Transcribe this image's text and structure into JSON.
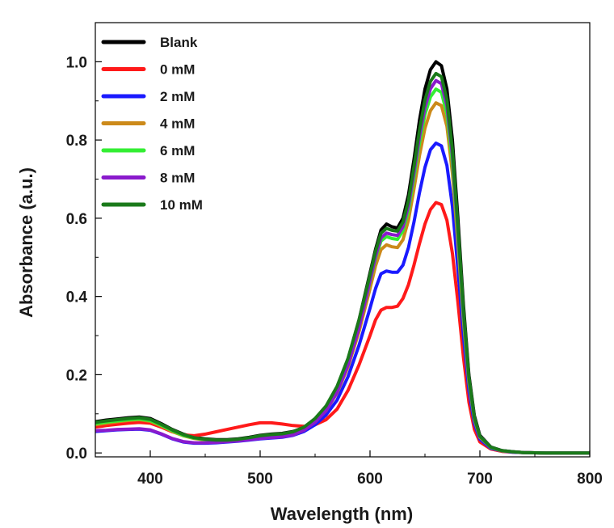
{
  "chart_data": {
    "type": "line",
    "xlabel": "Wavelength (nm)",
    "ylabel": "Absorbance (a.u.)",
    "xlim": [
      350,
      800
    ],
    "ylim": [
      -0.01,
      1.1
    ],
    "x_ticks": [
      400,
      500,
      600,
      700,
      800
    ],
    "x_tick_labels": [
      "400",
      "500",
      "600",
      "700",
      "800"
    ],
    "y_ticks": [
      0.0,
      0.2,
      0.4,
      0.6,
      0.8,
      1.0
    ],
    "y_tick_labels": [
      "0.0",
      "0.2",
      "0.4",
      "0.6",
      "0.8",
      "1.0"
    ],
    "grid": false,
    "legend_position": "top-left",
    "x": [
      350,
      360,
      370,
      380,
      390,
      400,
      410,
      420,
      430,
      440,
      450,
      460,
      470,
      480,
      490,
      500,
      510,
      520,
      530,
      540,
      550,
      560,
      570,
      580,
      590,
      600,
      605,
      610,
      615,
      620,
      625,
      630,
      635,
      640,
      645,
      650,
      655,
      660,
      665,
      670,
      675,
      680,
      685,
      690,
      695,
      700,
      710,
      720,
      730,
      740,
      760,
      780,
      800
    ],
    "series": [
      {
        "name": "Blank",
        "color": "#000000",
        "values": [
          0.08,
          0.084,
          0.087,
          0.09,
          0.092,
          0.088,
          0.075,
          0.06,
          0.048,
          0.04,
          0.036,
          0.034,
          0.034,
          0.036,
          0.04,
          0.045,
          0.048,
          0.05,
          0.055,
          0.065,
          0.085,
          0.115,
          0.165,
          0.24,
          0.34,
          0.46,
          0.52,
          0.57,
          0.585,
          0.578,
          0.575,
          0.6,
          0.66,
          0.75,
          0.85,
          0.93,
          0.98,
          1.0,
          0.99,
          0.93,
          0.8,
          0.6,
          0.38,
          0.2,
          0.095,
          0.045,
          0.015,
          0.006,
          0.003,
          0.001,
          0.0,
          0.0,
          0.0
        ]
      },
      {
        "name": "0 mM",
        "color": "#ff1a1a",
        "values": [
          0.066,
          0.07,
          0.073,
          0.076,
          0.078,
          0.076,
          0.066,
          0.054,
          0.046,
          0.044,
          0.048,
          0.054,
          0.06,
          0.066,
          0.072,
          0.077,
          0.077,
          0.074,
          0.07,
          0.068,
          0.072,
          0.085,
          0.112,
          0.16,
          0.225,
          0.3,
          0.34,
          0.365,
          0.372,
          0.372,
          0.375,
          0.395,
          0.43,
          0.48,
          0.535,
          0.585,
          0.622,
          0.64,
          0.635,
          0.595,
          0.51,
          0.385,
          0.245,
          0.13,
          0.06,
          0.028,
          0.01,
          0.004,
          0.002,
          0.001,
          0.0,
          0.0,
          0.0
        ]
      },
      {
        "name": "2 mM",
        "color": "#1a1aff",
        "values": [
          0.055,
          0.057,
          0.059,
          0.06,
          0.061,
          0.058,
          0.048,
          0.036,
          0.028,
          0.025,
          0.025,
          0.026,
          0.028,
          0.03,
          0.033,
          0.036,
          0.038,
          0.04,
          0.045,
          0.055,
          0.072,
          0.097,
          0.135,
          0.195,
          0.275,
          0.37,
          0.42,
          0.458,
          0.465,
          0.462,
          0.462,
          0.48,
          0.525,
          0.59,
          0.665,
          0.73,
          0.775,
          0.792,
          0.785,
          0.735,
          0.63,
          0.47,
          0.3,
          0.16,
          0.075,
          0.035,
          0.012,
          0.005,
          0.002,
          0.001,
          0.0,
          0.0,
          0.0
        ]
      },
      {
        "name": "4 mM",
        "color": "#cc8a1a",
        "values": [
          0.072,
          0.076,
          0.08,
          0.083,
          0.085,
          0.081,
          0.069,
          0.055,
          0.044,
          0.037,
          0.033,
          0.031,
          0.031,
          0.033,
          0.037,
          0.041,
          0.044,
          0.046,
          0.051,
          0.061,
          0.08,
          0.108,
          0.153,
          0.22,
          0.31,
          0.42,
          0.478,
          0.52,
          0.532,
          0.527,
          0.525,
          0.545,
          0.595,
          0.675,
          0.76,
          0.83,
          0.875,
          0.895,
          0.888,
          0.835,
          0.715,
          0.535,
          0.34,
          0.18,
          0.085,
          0.04,
          0.014,
          0.005,
          0.003,
          0.001,
          0.0,
          0.0,
          0.0
        ]
      },
      {
        "name": "6 mM",
        "color": "#33ee33",
        "values": [
          0.075,
          0.079,
          0.082,
          0.085,
          0.087,
          0.083,
          0.071,
          0.057,
          0.045,
          0.038,
          0.034,
          0.032,
          0.032,
          0.034,
          0.038,
          0.043,
          0.046,
          0.048,
          0.053,
          0.063,
          0.082,
          0.111,
          0.158,
          0.228,
          0.322,
          0.437,
          0.497,
          0.542,
          0.553,
          0.548,
          0.546,
          0.568,
          0.62,
          0.703,
          0.792,
          0.865,
          0.91,
          0.93,
          0.922,
          0.866,
          0.742,
          0.556,
          0.352,
          0.186,
          0.088,
          0.042,
          0.014,
          0.006,
          0.003,
          0.001,
          0.0,
          0.0,
          0.0
        ]
      },
      {
        "name": "8 mM",
        "color": "#8a1acc",
        "values": [
          0.057,
          0.058,
          0.06,
          0.061,
          0.062,
          0.059,
          0.049,
          0.037,
          0.029,
          0.026,
          0.026,
          0.027,
          0.029,
          0.031,
          0.034,
          0.037,
          0.039,
          0.041,
          0.046,
          0.058,
          0.078,
          0.108,
          0.155,
          0.225,
          0.32,
          0.44,
          0.502,
          0.55,
          0.562,
          0.558,
          0.556,
          0.578,
          0.632,
          0.716,
          0.808,
          0.883,
          0.931,
          0.952,
          0.944,
          0.887,
          0.76,
          0.57,
          0.362,
          0.191,
          0.09,
          0.043,
          0.015,
          0.006,
          0.003,
          0.001,
          0.0,
          0.0,
          0.0
        ]
      },
      {
        "name": "10 mM",
        "color": "#1a7a1a",
        "values": [
          0.078,
          0.082,
          0.085,
          0.088,
          0.09,
          0.086,
          0.073,
          0.059,
          0.047,
          0.039,
          0.035,
          0.033,
          0.033,
          0.035,
          0.039,
          0.044,
          0.047,
          0.049,
          0.054,
          0.066,
          0.088,
          0.12,
          0.17,
          0.242,
          0.34,
          0.455,
          0.515,
          0.562,
          0.574,
          0.569,
          0.567,
          0.59,
          0.645,
          0.731,
          0.825,
          0.902,
          0.95,
          0.97,
          0.962,
          0.903,
          0.774,
          0.58,
          0.368,
          0.194,
          0.091,
          0.043,
          0.015,
          0.006,
          0.003,
          0.001,
          0.0,
          0.0,
          0.0
        ]
      }
    ]
  }
}
